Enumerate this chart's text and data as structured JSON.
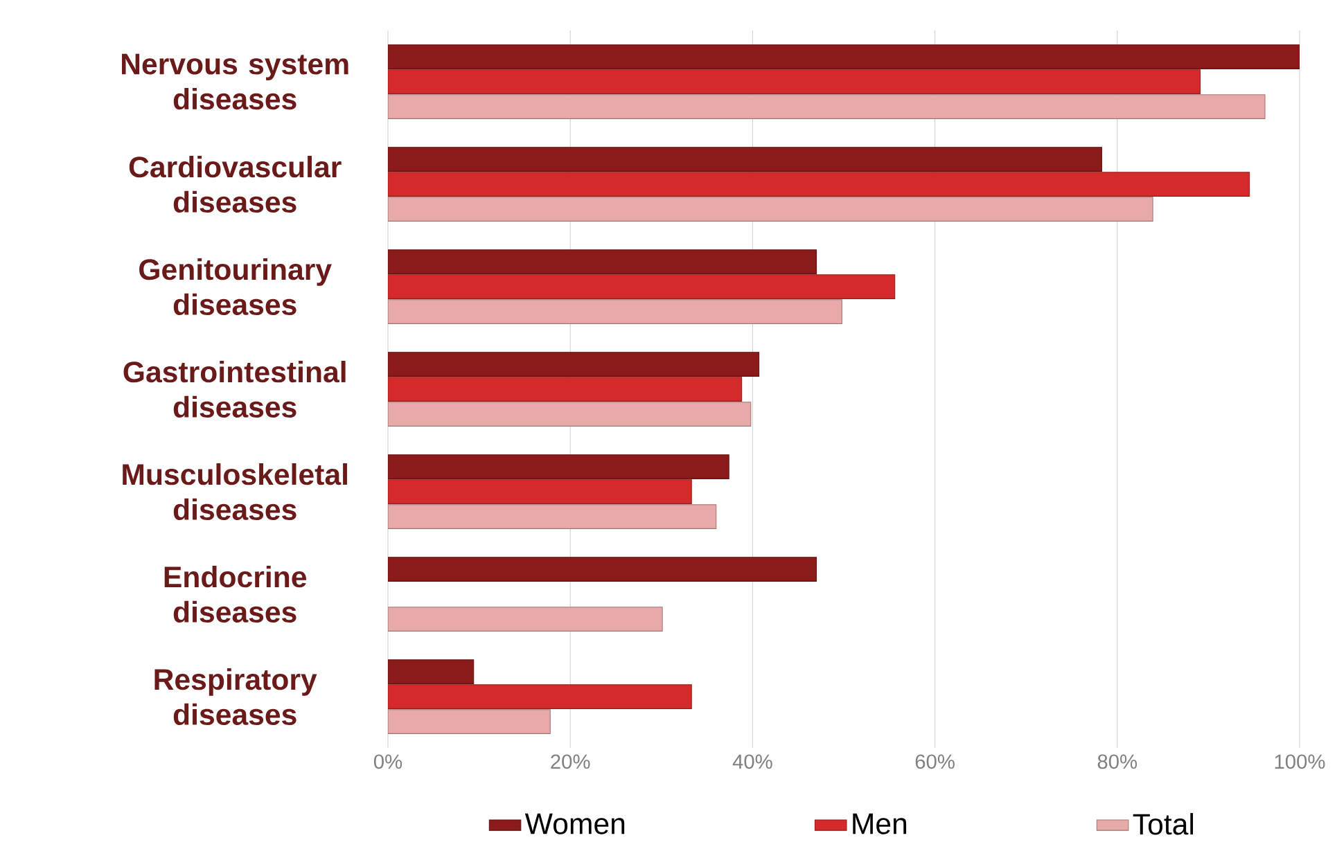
{
  "chart_data": {
    "type": "bar",
    "orientation": "horizontal",
    "categories": [
      "Nervous system diseases",
      "Cardiovascular diseases",
      "Genitourinary diseases",
      "Gastrointestinal diseases",
      "Musculoskeletal diseases",
      "Endocrine diseases",
      "Respiratory diseases"
    ],
    "series": [
      {
        "name": "Women",
        "color": "#8b1a1a",
        "values": [
          100,
          78.3,
          47.0,
          40.7,
          37.4,
          47.0,
          9.4
        ]
      },
      {
        "name": "Men",
        "color": "#d42a2a",
        "values": [
          89.1,
          94.5,
          55.6,
          38.8,
          33.3,
          null,
          33.3
        ]
      },
      {
        "name": "Total",
        "color": "#e8a9a9",
        "values": [
          96.2,
          83.9,
          49.8,
          39.8,
          36.0,
          30.1,
          17.8
        ]
      }
    ],
    "xlim": [
      0,
      100
    ],
    "xticks": [
      {
        "value": 0,
        "label": "0%"
      },
      {
        "value": 20,
        "label": "20%"
      },
      {
        "value": 40,
        "label": "40%"
      },
      {
        "value": 60,
        "label": "60%"
      },
      {
        "value": 80,
        "label": "80%"
      },
      {
        "value": 100,
        "label": "100%"
      }
    ],
    "grid": "x",
    "legend": "bottom"
  }
}
